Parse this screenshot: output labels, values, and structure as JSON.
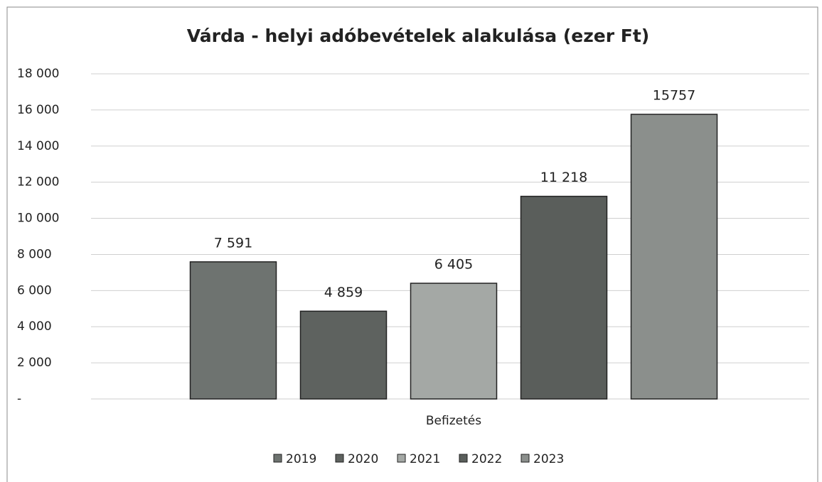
{
  "chart_data": {
    "type": "bar",
    "title": "Várda - helyi adóbevételek alakulása (ezer Ft)",
    "categories": [
      "Befizetés"
    ],
    "series": [
      {
        "name": "2019",
        "color": "#6e7370",
        "values": [
          7591
        ],
        "value_labels": [
          "7 591"
        ]
      },
      {
        "name": "2020",
        "color": "#5e625f",
        "values": [
          4859
        ],
        "value_labels": [
          "4 859"
        ]
      },
      {
        "name": "2021",
        "color": "#a4a8a5",
        "values": [
          6405
        ],
        "value_labels": [
          "6 405"
        ]
      },
      {
        "name": "2022",
        "color": "#5a5e5b",
        "values": [
          11218
        ],
        "value_labels": [
          "11 218"
        ]
      },
      {
        "name": "2023",
        "color": "#8b8f8c",
        "values": [
          15757
        ],
        "value_labels": [
          "15757"
        ]
      }
    ],
    "ylim": [
      0,
      18000
    ],
    "yticks": [
      {
        "value": 0,
        "label": "-"
      },
      {
        "value": 2000,
        "label": "2 000"
      },
      {
        "value": 4000,
        "label": "4 000"
      },
      {
        "value": 6000,
        "label": "6 000"
      },
      {
        "value": 8000,
        "label": "8 000"
      },
      {
        "value": 10000,
        "label": "10 000"
      },
      {
        "value": 12000,
        "label": "12 000"
      },
      {
        "value": 14000,
        "label": "14 000"
      },
      {
        "value": 16000,
        "label": "16 000"
      },
      {
        "value": 18000,
        "label": "18 000"
      }
    ],
    "grid": true,
    "legend": "bottom"
  }
}
